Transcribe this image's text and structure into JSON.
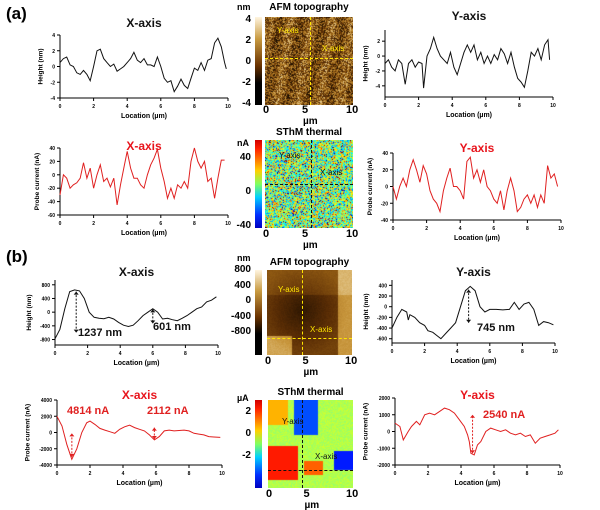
{
  "panels": {
    "a": "(a)",
    "b": "(b)"
  },
  "images": {
    "a_afm": {
      "title": "AFM topography",
      "unit": "nm",
      "ticks": [
        "4",
        "2",
        "0",
        "-2",
        "-4"
      ],
      "xticks": [
        "0",
        "5",
        "10"
      ],
      "xunit": "µm",
      "ylabel": "Y-axis",
      "xlabel": "X-axis"
    },
    "a_sthm": {
      "title": "SThM thermal",
      "unit": "nA",
      "ticks": [
        "40",
        "0",
        "-40"
      ],
      "xticks": [
        "0",
        "5",
        "10"
      ],
      "xunit": "µm",
      "ylabel": "Y-axis",
      "xlabel": "X-axis"
    },
    "b_afm": {
      "title": "AFM topography",
      "unit": "nm",
      "ticks": [
        "800",
        "400",
        "0",
        "-400",
        "-800"
      ],
      "xticks": [
        "0",
        "5",
        "10"
      ],
      "xunit": "µm",
      "ylabel": "Y-axis",
      "xlabel": "X-axis"
    },
    "b_sthm": {
      "title": "SThM thermal",
      "unit": "µA",
      "ticks": [
        "2",
        "0",
        "-2"
      ],
      "xticks": [
        "0",
        "5",
        "10"
      ],
      "xunit": "µm",
      "ylabel": "Y-axis",
      "xlabel": "X-axis"
    }
  },
  "colors": {
    "black_line": "#111111",
    "red_line": "#e02020",
    "red_title": "#e8141c",
    "afm_yellow": "#ffe600"
  },
  "chart_data": [
    {
      "id": "a1",
      "type": "line",
      "title": "X-axis",
      "title_color": "#111111",
      "xlabel": "Location (µm)",
      "ylabel": "Height (nm)",
      "xlim": [
        0,
        10
      ],
      "ylim": [
        -4,
        4
      ],
      "xticks": [
        0,
        2,
        4,
        6,
        8,
        10
      ],
      "yticks": [
        4,
        2,
        0,
        -2,
        -4
      ],
      "color": "#111111",
      "x": [
        0,
        0.2,
        0.4,
        0.6,
        0.8,
        1,
        1.2,
        1.4,
        1.6,
        1.8,
        2,
        2.2,
        2.4,
        2.6,
        2.8,
        3,
        3.2,
        3.4,
        3.6,
        3.8,
        4,
        4.2,
        4.4,
        4.6,
        4.8,
        5,
        5.2,
        5.4,
        5.6,
        5.8,
        6,
        6.2,
        6.4,
        6.6,
        6.8,
        7,
        7.2,
        7.4,
        7.6,
        7.8,
        8,
        8.2,
        8.4,
        8.6,
        8.8,
        9,
        9.2,
        9.4,
        9.6,
        9.8,
        9.9
      ],
      "y": [
        0.5,
        1,
        1.2,
        0.2,
        0,
        -0.8,
        -1,
        -0.5,
        -1,
        -1.8,
        0,
        2,
        2.2,
        1,
        0.5,
        0,
        0.3,
        -0.6,
        -0.3,
        0,
        0.5,
        1,
        1.8,
        0.8,
        0.5,
        1,
        0.2,
        0.2,
        0,
        1.2,
        0,
        -1.5,
        -2,
        -1.8,
        -3.2,
        -2.5,
        -1.6,
        -2.4,
        -2.8,
        -1.5,
        -0.2,
        -0.5,
        0.5,
        -0.5,
        0.8,
        1,
        3,
        3.6,
        2.5,
        0.5,
        -0.3
      ],
      "annotations": []
    },
    {
      "id": "a2",
      "type": "line",
      "title": "X-axis",
      "title_color": "#e8141c",
      "xlabel": "Location (µm)",
      "ylabel": "Probe current (nA)",
      "xlim": [
        0,
        10
      ],
      "ylim": [
        -60,
        40
      ],
      "xticks": [
        0,
        2,
        4,
        6,
        8,
        10
      ],
      "yticks": [
        40,
        20,
        0,
        -20,
        -40,
        -60
      ],
      "color": "#e02020",
      "x": [
        0,
        0.2,
        0.4,
        0.6,
        0.8,
        1,
        1.2,
        1.4,
        1.6,
        1.8,
        2,
        2.2,
        2.4,
        2.6,
        2.8,
        3,
        3.2,
        3.4,
        3.6,
        3.8,
        4,
        4.2,
        4.4,
        4.6,
        4.8,
        5,
        5.2,
        5.4,
        5.6,
        5.8,
        6,
        6.2,
        6.4,
        6.6,
        6.8,
        7,
        7.2,
        7.4,
        7.6,
        7.8,
        8,
        8.2,
        8.4,
        8.6,
        8.8,
        9,
        9.2,
        9.4,
        9.6,
        9.8
      ],
      "y": [
        -30,
        0,
        -5,
        -20,
        -15,
        -12,
        -5,
        18,
        -5,
        10,
        -20,
        0,
        15,
        -10,
        -5,
        -18,
        -5,
        -45,
        -15,
        10,
        35,
        10,
        -5,
        -5,
        -15,
        -20,
        0,
        15,
        25,
        38,
        10,
        -10,
        -35,
        -20,
        -35,
        -15,
        -20,
        -10,
        -20,
        20,
        40,
        20,
        10,
        20,
        -10,
        -5,
        -35,
        -5,
        22,
        22
      ],
      "annotations": []
    },
    {
      "id": "a3",
      "type": "line",
      "title": "Y-axis",
      "title_color": "#111111",
      "xlabel": "Location (µm)",
      "ylabel": "Height (nm)",
      "xlim": [
        0,
        10
      ],
      "ylim": [
        -5.5,
        3.5
      ],
      "xticks": [
        0,
        2,
        4,
        6,
        8,
        10
      ],
      "yticks": [
        2,
        0,
        -2,
        -4
      ],
      "color": "#111111",
      "x": [
        0,
        0.2,
        0.4,
        0.6,
        0.8,
        1,
        1.2,
        1.4,
        1.6,
        1.8,
        2,
        2.2,
        2.3,
        2.5,
        2.7,
        2.9,
        3.1,
        3.3,
        3.5,
        3.7,
        3.9,
        4.1,
        4.3,
        4.5,
        4.7,
        4.9,
        5.1,
        5.3,
        5.5,
        5.7,
        5.9,
        6.1,
        6.3,
        6.5,
        6.7,
        6.9,
        7.1,
        7.3,
        7.5,
        7.7,
        7.9,
        8.1,
        8.3,
        8.5,
        8.7,
        8.9,
        9.1,
        9.3,
        9.5,
        9.7,
        9.8
      ],
      "y": [
        -1,
        -0.5,
        -1.5,
        -2,
        -0.5,
        -1,
        -3.8,
        -1,
        -0.5,
        -1.5,
        -0.8,
        -1,
        -4.3,
        0,
        1,
        2.5,
        1,
        0,
        -0.5,
        -1,
        0.5,
        -1.5,
        -2.5,
        -1,
        0.5,
        1.5,
        0.5,
        1.5,
        -0.5,
        0.5,
        -1,
        0,
        -1,
        0.2,
        -0.5,
        1,
        0.3,
        -1,
        0.5,
        -1.5,
        -3,
        -3.5,
        -4.2,
        -2,
        0.5,
        0,
        1,
        -0.5,
        1.5,
        2.2,
        -0.5
      ],
      "annotations": []
    },
    {
      "id": "a4",
      "type": "line",
      "title": "Y-axis",
      "title_color": "#e8141c",
      "xlabel": "Location (µm)",
      "ylabel": "Probe current (nA)",
      "xlim": [
        0,
        10
      ],
      "ylim": [
        -40,
        40
      ],
      "xticks": [
        0,
        2,
        4,
        6,
        8,
        10
      ],
      "yticks": [
        40,
        20,
        0,
        -20,
        -40
      ],
      "color": "#e02020",
      "x": [
        0,
        0.2,
        0.4,
        0.6,
        0.8,
        1,
        1.2,
        1.4,
        1.6,
        1.8,
        2,
        2.2,
        2.4,
        2.6,
        2.8,
        3,
        3.2,
        3.4,
        3.6,
        3.8,
        4,
        4.2,
        4.4,
        4.6,
        4.8,
        5,
        5.2,
        5.4,
        5.6,
        5.8,
        6,
        6.2,
        6.4,
        6.6,
        6.8,
        7,
        7.2,
        7.4,
        7.6,
        7.8,
        8,
        8.2,
        8.4,
        8.6,
        8.8,
        9,
        9.2,
        9.4,
        9.6,
        9.8
      ],
      "y": [
        0,
        -15,
        0,
        10,
        0,
        20,
        32,
        20,
        5,
        25,
        15,
        -5,
        -15,
        -20,
        -30,
        -5,
        10,
        22,
        0,
        0,
        -5,
        -15,
        30,
        35,
        10,
        20,
        5,
        20,
        0,
        -5,
        -15,
        -20,
        -5,
        -28,
        -5,
        10,
        -5,
        -30,
        -25,
        -15,
        -10,
        -20,
        -10,
        -25,
        -10,
        -20,
        25,
        10,
        15,
        0
      ],
      "annotations": []
    },
    {
      "id": "b1",
      "type": "line",
      "title": "X-axis",
      "title_color": "#111111",
      "xlabel": "Location (µm)",
      "ylabel": "Height (nm)",
      "xlim": [
        0,
        10
      ],
      "ylim": [
        -960,
        940
      ],
      "xticks": [
        0,
        2,
        4,
        6,
        8,
        10
      ],
      "yticks": [
        800,
        400,
        0,
        -400,
        -800
      ],
      "color": "#111111",
      "x": [
        0,
        0.3,
        0.6,
        0.9,
        1.2,
        1.5,
        1.8,
        2.1,
        2.4,
        2.7,
        3,
        3.3,
        3.6,
        3.9,
        4.2,
        4.5,
        4.8,
        5.1,
        5.4,
        5.7,
        6,
        6.3,
        6.6,
        6.9,
        7.2,
        7.5,
        7.8,
        8.1,
        8.4,
        8.7,
        9,
        9.3,
        9.6,
        9.9
      ],
      "y": [
        -780,
        -500,
        100,
        600,
        650,
        620,
        400,
        0,
        -150,
        -180,
        -190,
        -150,
        -200,
        -300,
        -380,
        -420,
        -380,
        -250,
        -100,
        0,
        100,
        0,
        -200,
        -180,
        -220,
        -250,
        -180,
        -100,
        0,
        100,
        150,
        300,
        350,
        450
      ],
      "annotations": [
        {
          "text": "1237 nm"
        },
        {
          "text": "601 nm"
        }
      ]
    },
    {
      "id": "b2",
      "type": "line",
      "title": "X-axis",
      "title_color": "#e8141c",
      "xlabel": "Location (µm)",
      "ylabel": "Probe current (nA)",
      "xlim": [
        0,
        10
      ],
      "ylim": [
        -4000,
        4000
      ],
      "xticks": [
        0,
        2,
        4,
        6,
        8,
        10
      ],
      "yticks": [
        4000,
        2000,
        0,
        -2000,
        -4000
      ],
      "color": "#e02020",
      "x": [
        0,
        0.3,
        0.6,
        0.9,
        1.2,
        1.5,
        1.8,
        2,
        2.3,
        2.6,
        2.9,
        3.2,
        3.5,
        3.8,
        4.1,
        4.4,
        4.7,
        5,
        5.3,
        5.6,
        5.9,
        6.2,
        6.5,
        6.8,
        7.1,
        7.4,
        7.7,
        8,
        8.3,
        8.6,
        8.9,
        9.2,
        9.5,
        9.9
      ],
      "y": [
        2000,
        800,
        -1500,
        -3300,
        -2000,
        0,
        1200,
        1400,
        1000,
        500,
        300,
        100,
        -100,
        400,
        700,
        900,
        600,
        400,
        200,
        -300,
        -900,
        -500,
        200,
        300,
        200,
        250,
        300,
        200,
        -100,
        -200,
        -300,
        -500,
        -550,
        -600
      ],
      "annotations": [
        {
          "text": "4814 nA"
        },
        {
          "text": "2112 nA"
        }
      ]
    },
    {
      "id": "b3",
      "type": "line",
      "title": "Y-axis",
      "title_color": "#111111",
      "xlabel": "Location (µm)",
      "ylabel": "Height (nm)",
      "xlim": [
        0,
        10
      ],
      "ylim": [
        -680,
        500
      ],
      "xticks": [
        0,
        2,
        4,
        6,
        8,
        10
      ],
      "yticks": [
        400,
        200,
        0,
        -200,
        -400,
        -600
      ],
      "color": "#111111",
      "x": [
        0,
        0.3,
        0.6,
        0.9,
        1,
        1.1,
        1.4,
        1.7,
        2,
        2.2,
        2.5,
        2.8,
        3,
        3.3,
        3.6,
        3.9,
        4.2,
        4.5,
        4.8,
        5.1,
        5.4,
        5.7,
        6,
        6.4,
        6.8,
        7.2,
        7.5,
        7.8,
        8.1,
        8.4,
        8.7,
        9,
        9.3,
        9.6,
        9.9
      ],
      "y": [
        -400,
        -200,
        -50,
        -100,
        -250,
        -150,
        -200,
        -300,
        -350,
        -450,
        -480,
        -550,
        -600,
        -500,
        -400,
        -300,
        0,
        300,
        380,
        300,
        0,
        -100,
        -50,
        -50,
        -60,
        -50,
        80,
        -50,
        50,
        80,
        -50,
        -350,
        -280,
        -300,
        -340
      ],
      "annotations": [
        {
          "text": "745 nm"
        }
      ]
    },
    {
      "id": "b4",
      "type": "line",
      "title": "Y-axis",
      "title_color": "#e8141c",
      "xlabel": "Location (µm)",
      "ylabel": "Probe current (nA)",
      "xlim": [
        0,
        10
      ],
      "ylim": [
        -2000,
        2000
      ],
      "xticks": [
        0,
        2,
        4,
        6,
        8,
        10
      ],
      "yticks": [
        2000,
        1000,
        0,
        -1000,
        -2000
      ],
      "color": "#e02020",
      "x": [
        0,
        0.3,
        0.5,
        0.8,
        1,
        1.3,
        1.5,
        1.8,
        2.1,
        2.4,
        2.7,
        3,
        3.3,
        3.6,
        3.9,
        4.2,
        4.4,
        4.5,
        4.6,
        4.8,
        5,
        5.2,
        5.5,
        5.8,
        6.1,
        6.4,
        6.7,
        7,
        7.3,
        7.6,
        7.9,
        8.2,
        8.5,
        8.8,
        9.1,
        9.4,
        9.7,
        9.9
      ],
      "y": [
        500,
        300,
        -500,
        0,
        300,
        600,
        400,
        1000,
        1100,
        1000,
        1200,
        1400,
        1300,
        1100,
        700,
        300,
        -200,
        -600,
        -1300,
        -1400,
        -800,
        -600,
        0,
        200,
        100,
        0,
        100,
        -100,
        -200,
        -100,
        -300,
        -200,
        -700,
        -400,
        -300,
        -200,
        -100,
        100
      ],
      "annotations": [
        {
          "text": "2540 nA"
        }
      ]
    }
  ]
}
